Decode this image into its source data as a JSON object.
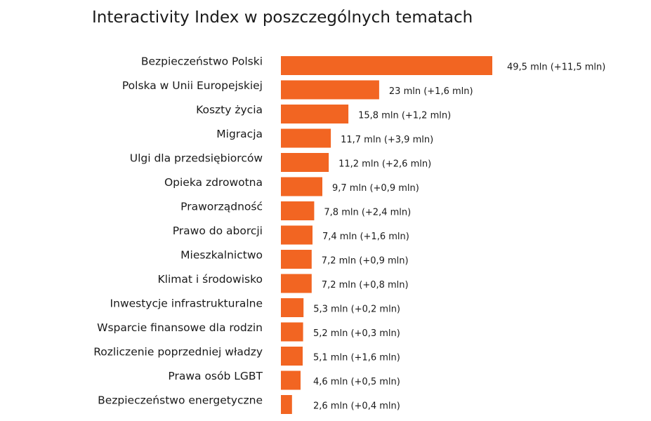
{
  "chart_data": {
    "type": "bar",
    "orientation": "horizontal",
    "title": "Interactivity Index w poszczególnych tematach",
    "bar_color": "#F26522",
    "categories": [
      "Bezpieczeństwo Polski",
      "Polska w Unii Europejskiej",
      "Koszty życia",
      "Migracja",
      "Ulgi dla przedsiębiorców",
      "Opieka zdrowotna",
      "Praworządność",
      "Prawo do aborcji",
      "Mieszkalnictwo",
      "Klimat i środowisko",
      "Inwestycje infrastrukturalne",
      "Wsparcie finansowe dla rodzin",
      "Rozliczenie poprzedniej władzy",
      "Prawa osób LGBT",
      "Bezpieczeństwo energetyczne"
    ],
    "values": [
      49.5,
      23,
      15.8,
      11.7,
      11.2,
      9.7,
      7.8,
      7.4,
      7.2,
      7.2,
      5.3,
      5.2,
      5.1,
      4.6,
      2.6
    ],
    "value_labels": [
      "49,5 mln (+11,5 mln)",
      "23 mln (+1,6 mln)",
      "15,8 mln (+1,2 mln)",
      "11,7 mln (+3,9 mln)",
      "11,2 mln (+2,6 mln)",
      "9,7 mln (+0,9 mln)",
      "7,8 mln (+2,4 mln)",
      "7,4 mln (+1,6 mln)",
      "7,2 mln (+0,9 mln)",
      "7,2 mln (+0,8 mln)",
      "5,3 mln (+0,2 mln)",
      "5,2 mln (+0,3 mln)",
      "5,1 mln (+1,6 mln)",
      "4,6 mln (+0,5 mln)",
      "2,6 mln (+0,4 mln)"
    ],
    "xlim": [
      0,
      49.5
    ]
  }
}
